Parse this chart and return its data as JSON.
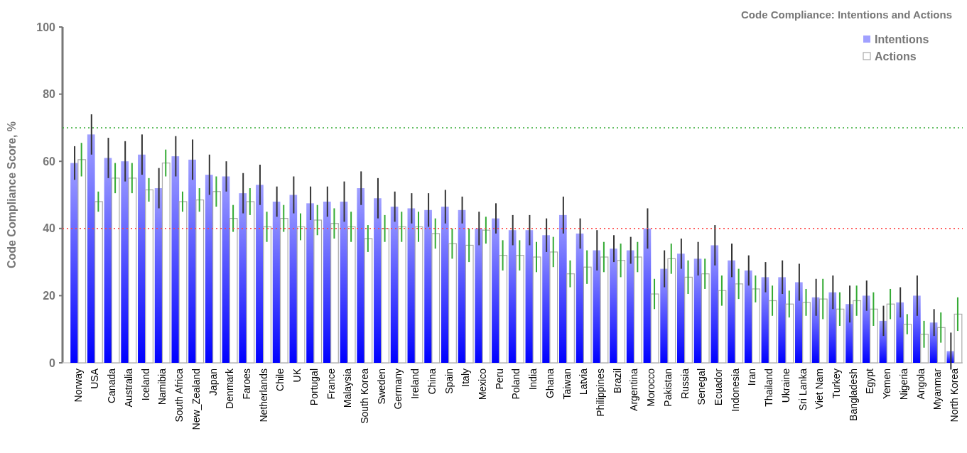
{
  "chart_data": {
    "type": "bar",
    "title": "Code Compliance: Intentions and Actions",
    "ylabel": "Code Compliance Score, %",
    "categories": [
      "Norway",
      "USA",
      "Canada",
      "Australia",
      "Iceland",
      "Namibia",
      "South Africa",
      "New_Zealand",
      "Japan",
      "Denmark",
      "Faroes",
      "Netherlands",
      "Chile",
      "UK",
      "Portugal",
      "France",
      "Malaysia",
      "South Korea",
      "Sweden",
      "Germany",
      "Ireland",
      "China",
      "Spain",
      "Italy",
      "Mexico",
      "Peru",
      "Poland",
      "India",
      "Ghana",
      "Taiwan",
      "Latvia",
      "Philippines",
      "Brazil",
      "Argentina",
      "Morocco",
      "Pakistan",
      "Russia",
      "Senegal",
      "Ecuador",
      "Indonesia",
      "Iran",
      "Thailand",
      "Ukraine",
      "Sri Lanka",
      "Viet Nam",
      "Turkey",
      "Bangladesh",
      "Egypt",
      "Yemen",
      "Nigeria",
      "Angola",
      "Myanmar",
      "North Korea"
    ],
    "series": [
      {
        "name": "Intentions",
        "color": "#a0a0ff",
        "values": [
          59.5,
          68,
          61,
          60,
          62,
          52,
          61.5,
          60.5,
          56,
          55.5,
          50.5,
          53,
          48,
          50,
          47.5,
          48,
          48,
          52,
          49,
          46.5,
          46,
          45.5,
          46.5,
          45.5,
          40,
          43,
          39.5,
          39.5,
          38,
          44,
          38.5,
          33.5,
          34,
          33.5,
          40,
          28,
          32.5,
          31,
          35,
          30.5,
          27.5,
          25.5,
          25.5,
          24,
          19.5,
          21,
          17.5,
          20,
          12.5,
          18,
          20,
          12,
          3.5
        ],
        "errors": [
          5,
          6,
          6,
          6,
          6,
          6,
          6,
          6,
          6,
          4.5,
          6,
          6,
          4.5,
          5.5,
          5,
          4.5,
          6,
          5,
          6,
          4.5,
          4.5,
          5,
          5,
          4,
          5,
          4.5,
          4.5,
          4.5,
          5,
          5.5,
          4.5,
          6,
          4,
          4,
          6,
          5.5,
          4.5,
          5,
          6,
          5,
          4.5,
          4.5,
          5,
          5.5,
          5.5,
          5,
          5.5,
          4.5,
          4.5,
          4.5,
          6,
          4,
          5.5
        ]
      },
      {
        "name": "Actions",
        "color": "#aaaaaa",
        "values": [
          60.5,
          48,
          55,
          55,
          51.5,
          59.5,
          48,
          48.5,
          51,
          43,
          48,
          40.5,
          43,
          40.5,
          42.5,
          41.5,
          40.5,
          37,
          40,
          40.5,
          40.5,
          38.5,
          35.5,
          35,
          39.5,
          32,
          32,
          31.5,
          33,
          26.5,
          28.5,
          31.5,
          30.5,
          31.5,
          20.5,
          31,
          25.5,
          26.5,
          21.5,
          23.5,
          22,
          18.5,
          17.5,
          18,
          19,
          16,
          18.5,
          16,
          17.5,
          11.5,
          8.5,
          10.5,
          14.5
        ],
        "errors": [
          5,
          3,
          4.5,
          4.5,
          3.5,
          4,
          3,
          3.5,
          4.5,
          4,
          4,
          4.5,
          4,
          4,
          4.5,
          4.5,
          4.5,
          4,
          4,
          4.5,
          4.5,
          4.5,
          4.5,
          5,
          4,
          4.5,
          4.5,
          4.5,
          4.5,
          4,
          5,
          4.5,
          5,
          4.5,
          4.5,
          4.5,
          5,
          4.5,
          4.5,
          4.5,
          4,
          4.5,
          4,
          4,
          6,
          5,
          4.5,
          5,
          4.5,
          3,
          4,
          4.5,
          5
        ]
      }
    ],
    "ylim": [
      0,
      100
    ],
    "yticks": [
      0,
      20,
      40,
      60,
      80,
      100
    ],
    "legend": "top right",
    "ref_lines": [
      {
        "axis": "y",
        "value": 70,
        "color": "#33aa33",
        "line_style": "dotted"
      },
      {
        "axis": "y",
        "value": 40,
        "color": "#ff4444",
        "line_style": "dotted"
      }
    ]
  }
}
